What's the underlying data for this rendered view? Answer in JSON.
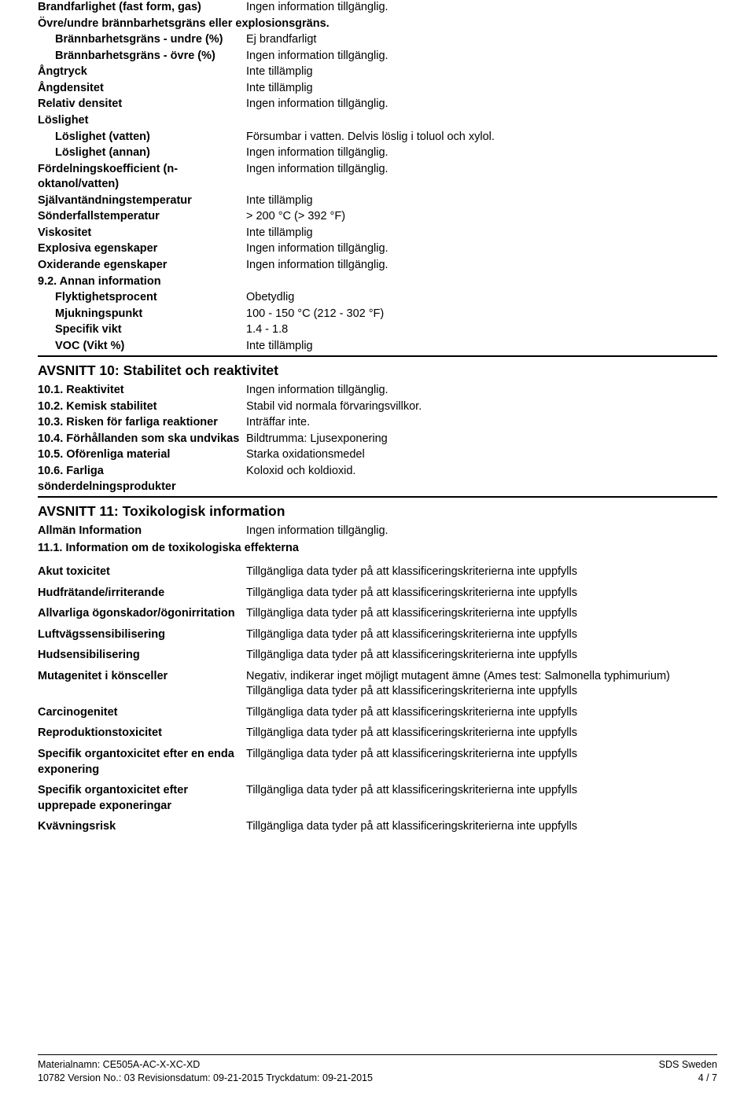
{
  "sec9": {
    "rows1": [
      {
        "label": "Brandfarlighet (fast form, gas)",
        "value": "Ingen information tillgänglig."
      }
    ],
    "sub1": "Övre/undre brännbarhetsgräns eller explosionsgräns.",
    "rows1b": [
      {
        "label": "Brännbarhetsgräns - undre (%)",
        "value": "Ej brandfarligt",
        "indent": true
      },
      {
        "label": "Brännbarhetsgräns - övre (%)",
        "value": "Ingen information tillgänglig.",
        "indent": true
      },
      {
        "label": "Ångtryck",
        "value": "Inte tillämplig"
      },
      {
        "label": "Ångdensitet",
        "value": "Inte tillämplig"
      },
      {
        "label": "Relativ densitet",
        "value": "Ingen information tillgänglig."
      }
    ],
    "sub2": "Löslighet",
    "rows2": [
      {
        "label": "Löslighet (vatten)",
        "value": "Försumbar i vatten. Delvis löslig i toluol och xylol.",
        "indent": true
      },
      {
        "label": "Löslighet (annan)",
        "value": "Ingen information tillgänglig.",
        "indent": true
      },
      {
        "label": "Fördelningskoefficient (n-oktanol/vatten)",
        "value": "Ingen information tillgänglig."
      },
      {
        "label": "Självantändningstemperatur",
        "value": "Inte tillämplig"
      },
      {
        "label": "Sönderfallstemperatur",
        "value": "> 200 °C (> 392 °F)"
      },
      {
        "label": "Viskositet",
        "value": "Inte tillämplig"
      },
      {
        "label": "Explosiva egenskaper",
        "value": "Ingen information tillgänglig."
      },
      {
        "label": "Oxiderande egenskaper",
        "value": "Ingen information tillgänglig."
      }
    ],
    "sub3": "9.2. Annan information",
    "rows3": [
      {
        "label": "Flyktighetsprocent",
        "value": "Obetydlig",
        "indent": true
      },
      {
        "label": "Mjukningspunkt",
        "value": "100 - 150 °C (212 - 302 °F)",
        "indent": true
      },
      {
        "label": "Specifik vikt",
        "value": "1.4 - 1.8",
        "indent": true
      },
      {
        "label": "VOC (Vikt %)",
        "value": "Inte tillämplig",
        "indent": true
      }
    ]
  },
  "sec10": {
    "title": "AVSNITT 10: Stabilitet och reaktivitet",
    "rows": [
      {
        "label": "10.1. Reaktivitet",
        "value": "Ingen information tillgänglig."
      },
      {
        "label": "10.2. Kemisk stabilitet",
        "value": "Stabil vid normala förvaringsvillkor."
      },
      {
        "label": "10.3. Risken för farliga reaktioner",
        "value": "Inträffar inte."
      },
      {
        "label": "10.4. Förhållanden som ska undvikas",
        "value": "Bildtrumma: Ljusexponering"
      },
      {
        "label": "10.5. Oförenliga material",
        "value": "Starka oxidationsmedel"
      },
      {
        "label": "10.6. Farliga sönderdelningsprodukter",
        "value": "Koloxid och koldioxid."
      }
    ]
  },
  "sec11": {
    "title": "AVSNITT 11: Toxikologisk information",
    "row0": {
      "label": "Allmän Information",
      "value": "Ingen information tillgänglig."
    },
    "sub": "11.1. Information om de toxikologiska effekterna",
    "rows": [
      {
        "label": "Akut toxicitet",
        "value": "Tillgängliga data tyder på att klassificeringskriterierna inte uppfylls"
      },
      {
        "label": "Hudfrätande/irriterande",
        "value": "Tillgängliga data tyder på att klassificeringskriterierna inte uppfylls"
      },
      {
        "label": "Allvarliga ögonskador/ögonirritation",
        "value": "Tillgängliga data tyder på att klassificeringskriterierna inte uppfylls"
      },
      {
        "label": "Luftvägssensibilisering",
        "value": "Tillgängliga data tyder på att klassificeringskriterierna inte uppfylls"
      },
      {
        "label": "Hudsensibilisering",
        "value": "Tillgängliga data tyder på att klassificeringskriterierna inte uppfylls"
      },
      {
        "label": "Mutagenitet i könsceller",
        "value": "Negativ, indikerar inget möjligt mutagent ämne (Ames test: Salmonella typhimurium) Tillgängliga data tyder på att klassificeringskriterierna inte uppfylls"
      },
      {
        "label": "Carcinogenitet",
        "value": "Tillgängliga data tyder på att klassificeringskriterierna inte uppfylls"
      },
      {
        "label": "Reproduktionstoxicitet",
        "value": "Tillgängliga data tyder på att klassificeringskriterierna inte uppfylls"
      },
      {
        "label": "Specifik organtoxicitet efter en enda exponering",
        "value": "Tillgängliga data tyder på att klassificeringskriterierna inte uppfylls"
      },
      {
        "label": "Specifik organtoxicitet efter upprepade exponeringar",
        "value": "Tillgängliga data tyder på att klassificeringskriterierna inte uppfylls"
      },
      {
        "label": "Kvävningsrisk",
        "value": "Tillgängliga data tyder på att klassificeringskriterierna inte uppfylls"
      }
    ]
  },
  "footer": {
    "left1": "Materialnamn: CE505A-AC-X-XC-XD",
    "right1": "SDS Sweden",
    "left2": "10782    Version No.: 03    Revisionsdatum: 09-21-2015    Tryckdatum: 09-21-2015",
    "right2": "4 / 7"
  }
}
